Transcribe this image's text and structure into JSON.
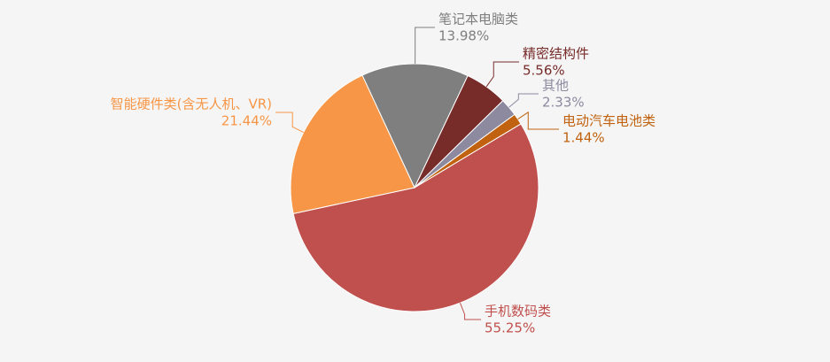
{
  "chart_data": {
    "type": "pie",
    "categories": [
      "手机数码类",
      "智能硬件类(含无人机、VR)",
      "笔记本电脑类",
      "精密结构件",
      "其他",
      "电动汽车电池类"
    ],
    "values": [
      55.25,
      21.44,
      13.98,
      5.56,
      2.33,
      1.44
    ],
    "value_labels": [
      "55.25%",
      "21.44%",
      "13.98%",
      "5.56%",
      "2.33%",
      "1.44%"
    ],
    "colors": [
      "#c0504d",
      "#f79646",
      "#7f7f7f",
      "#772c2a",
      "#8d8aa0",
      "#c0620f"
    ]
  }
}
